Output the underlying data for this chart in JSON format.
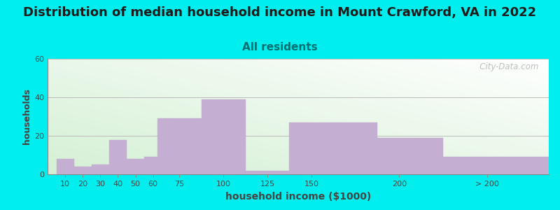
{
  "title": "Distribution of median household income in Mount Crawford, VA in 2022",
  "subtitle": "All residents",
  "xlabel": "household income ($1000)",
  "ylabel": "households",
  "bar_labels": [
    "10",
    "20",
    "30",
    "40",
    "50",
    "60",
    "75",
    "100",
    "125",
    "150",
    "200",
    "> 200"
  ],
  "bar_values": [
    8,
    4,
    5,
    18,
    8,
    9,
    29,
    39,
    2,
    27,
    19,
    9
  ],
  "bar_color": "#c4aed2",
  "ylim": [
    0,
    60
  ],
  "yticks": [
    0,
    20,
    40,
    60
  ],
  "background_outer": "#00eeee",
  "title_fontsize": 13,
  "subtitle_fontsize": 11,
  "title_color": "#1a1a1a",
  "subtitle_color": "#007070",
  "xlabel_fontsize": 10,
  "ylabel_fontsize": 9,
  "tick_fontsize": 8,
  "watermark": "   City-Data.com",
  "tick_positions": [
    10,
    20,
    30,
    40,
    50,
    60,
    75,
    100,
    125,
    150,
    200,
    250
  ],
  "bar_lefts": [
    5,
    15,
    25,
    35,
    45,
    55,
    62.5,
    87.5,
    112.5,
    137.5,
    175,
    225
  ],
  "bar_widths": [
    10,
    10,
    10,
    10,
    10,
    15,
    25,
    25,
    25,
    50,
    50,
    60
  ],
  "xlim": [
    0,
    285
  ]
}
